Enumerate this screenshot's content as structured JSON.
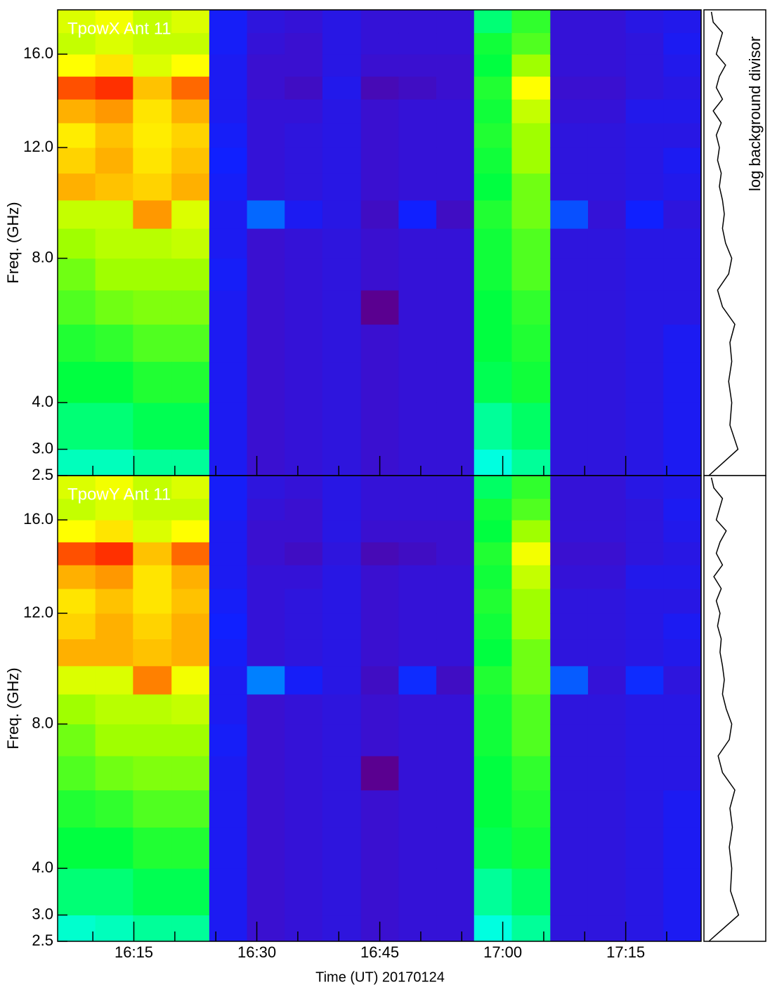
{
  "chart_data": {
    "type": "heatmap",
    "colormap": "rainbow",
    "xlabel": "Time (UT) 20170124",
    "ylabel": "Freq. (GHz)",
    "xlim": [
      965.7,
      1044.2
    ],
    "xticks": [
      {
        "value": 975,
        "label": "16:15"
      },
      {
        "value": 990,
        "label": "16:30"
      },
      {
        "value": 1005,
        "label": "16:45"
      },
      {
        "value": 1020,
        "label": "17:00"
      },
      {
        "value": 1035,
        "label": "17:15"
      }
    ],
    "xminorticks": [
      970,
      980,
      985,
      995,
      1000,
      1010,
      1015,
      1025,
      1030,
      1040
    ],
    "ylim": [
      2.5,
      18.1
    ],
    "yscale": "sqrt",
    "yticks": [
      {
        "value": 2.5,
        "label": "2.5"
      },
      {
        "value": 3,
        "label": "3.0"
      },
      {
        "value": 4,
        "label": "4.0"
      },
      {
        "value": 8,
        "label": "8.0"
      },
      {
        "value": 12,
        "label": "12.0"
      },
      {
        "value": 16,
        "label": "16.0"
      }
    ],
    "x_bins": [
      965.7,
      970.3,
      974.9,
      979.6,
      984.2,
      988.8,
      993.4,
      998.0,
      1002.7,
      1007.3,
      1011.9,
      1016.5,
      1021.1,
      1025.8,
      1030.4,
      1035.0,
      1039.6,
      1044.2
    ],
    "y_bins": [
      2.5,
      3,
      4,
      5,
      6,
      7,
      8,
      9,
      10,
      11,
      12,
      13,
      14,
      15,
      16,
      17,
      18.1
    ],
    "panels": [
      {
        "title": "TpowX Ant 11",
        "z": [
          [
            0.38,
            0.42,
            0.45,
            0.47,
            0.5,
            0.52,
            0.55,
            0.58,
            0.72,
            0.68,
            0.65,
            0.72,
            0.8,
            0.63,
            0.58,
            0.6
          ],
          [
            0.38,
            0.42,
            0.45,
            0.48,
            0.52,
            0.55,
            0.57,
            0.58,
            0.7,
            0.72,
            0.7,
            0.74,
            0.84,
            0.66,
            0.6,
            0.62
          ],
          [
            0.4,
            0.44,
            0.47,
            0.5,
            0.53,
            0.55,
            0.57,
            0.74,
            0.68,
            0.66,
            0.65,
            0.66,
            0.7,
            0.6,
            0.58,
            0.58
          ],
          [
            0.4,
            0.44,
            0.47,
            0.5,
            0.53,
            0.55,
            0.58,
            0.6,
            0.72,
            0.7,
            0.68,
            0.72,
            0.78,
            0.63,
            0.58,
            0.6
          ],
          [
            0.2,
            0.2,
            0.2,
            0.2,
            0.2,
            0.21,
            0.2,
            0.2,
            0.21,
            0.22,
            0.21,
            0.2,
            0.2,
            0.2,
            0.21,
            0.21
          ],
          [
            0.15,
            0.15,
            0.15,
            0.15,
            0.15,
            0.15,
            0.15,
            0.28,
            0.16,
            0.16,
            0.16,
            0.16,
            0.15,
            0.15,
            0.16,
            0.17
          ],
          [
            0.16,
            0.16,
            0.16,
            0.16,
            0.16,
            0.16,
            0.16,
            0.2,
            0.17,
            0.17,
            0.17,
            0.16,
            0.14,
            0.15,
            0.15,
            0.16
          ],
          [
            0.17,
            0.17,
            0.17,
            0.17,
            0.17,
            0.17,
            0.17,
            0.18,
            0.18,
            0.18,
            0.18,
            0.18,
            0.19,
            0.18,
            0.18,
            0.18
          ],
          [
            0.15,
            0.15,
            0.15,
            0.15,
            0.1,
            0.15,
            0.15,
            0.14,
            0.15,
            0.15,
            0.15,
            0.15,
            0.13,
            0.15,
            0.16,
            0.16
          ],
          [
            0.16,
            0.16,
            0.16,
            0.16,
            0.16,
            0.16,
            0.16,
            0.22,
            0.16,
            0.16,
            0.16,
            0.16,
            0.14,
            0.15,
            0.16,
            0.16
          ],
          [
            0.16,
            0.16,
            0.16,
            0.16,
            0.16,
            0.16,
            0.16,
            0.14,
            0.16,
            0.16,
            0.16,
            0.16,
            0.15,
            0.15,
            0.16,
            0.16
          ],
          [
            0.36,
            0.4,
            0.44,
            0.45,
            0.45,
            0.46,
            0.46,
            0.47,
            0.45,
            0.46,
            0.47,
            0.46,
            0.47,
            0.45,
            0.46,
            0.42
          ],
          [
            0.4,
            0.43,
            0.46,
            0.47,
            0.48,
            0.5,
            0.5,
            0.52,
            0.52,
            0.55,
            0.55,
            0.58,
            0.63,
            0.55,
            0.5,
            0.48
          ],
          [
            0.17,
            0.17,
            0.17,
            0.17,
            0.17,
            0.17,
            0.17,
            0.26,
            0.17,
            0.17,
            0.17,
            0.16,
            0.15,
            0.16,
            0.16,
            0.16
          ],
          [
            0.17,
            0.17,
            0.17,
            0.17,
            0.17,
            0.17,
            0.17,
            0.16,
            0.17,
            0.17,
            0.17,
            0.16,
            0.15,
            0.16,
            0.16,
            0.16
          ],
          [
            0.18,
            0.18,
            0.18,
            0.18,
            0.18,
            0.18,
            0.18,
            0.22,
            0.18,
            0.18,
            0.18,
            0.19,
            0.17,
            0.17,
            0.17,
            0.18
          ],
          [
            0.2,
            0.2,
            0.2,
            0.2,
            0.18,
            0.18,
            0.18,
            0.17,
            0.19,
            0.2,
            0.18,
            0.19,
            0.18,
            0.19,
            0.2,
            0.19
          ]
        ]
      },
      {
        "title": "TpowY Ant 11",
        "z": [
          [
            0.37,
            0.42,
            0.45,
            0.47,
            0.5,
            0.52,
            0.55,
            0.6,
            0.72,
            0.68,
            0.66,
            0.72,
            0.8,
            0.63,
            0.58,
            0.6
          ],
          [
            0.38,
            0.42,
            0.45,
            0.48,
            0.52,
            0.55,
            0.57,
            0.6,
            0.72,
            0.72,
            0.7,
            0.74,
            0.84,
            0.66,
            0.6,
            0.62
          ],
          [
            0.4,
            0.44,
            0.47,
            0.5,
            0.53,
            0.55,
            0.57,
            0.76,
            0.7,
            0.68,
            0.66,
            0.66,
            0.7,
            0.6,
            0.58,
            0.58
          ],
          [
            0.4,
            0.44,
            0.47,
            0.5,
            0.53,
            0.55,
            0.58,
            0.62,
            0.72,
            0.72,
            0.7,
            0.72,
            0.78,
            0.63,
            0.58,
            0.6
          ],
          [
            0.2,
            0.2,
            0.2,
            0.2,
            0.2,
            0.21,
            0.2,
            0.2,
            0.21,
            0.22,
            0.21,
            0.2,
            0.2,
            0.2,
            0.21,
            0.21
          ],
          [
            0.15,
            0.15,
            0.15,
            0.15,
            0.15,
            0.15,
            0.15,
            0.3,
            0.16,
            0.16,
            0.16,
            0.16,
            0.15,
            0.15,
            0.16,
            0.17
          ],
          [
            0.16,
            0.16,
            0.16,
            0.16,
            0.16,
            0.16,
            0.16,
            0.21,
            0.17,
            0.17,
            0.17,
            0.16,
            0.14,
            0.15,
            0.15,
            0.16
          ],
          [
            0.17,
            0.17,
            0.17,
            0.17,
            0.17,
            0.17,
            0.17,
            0.18,
            0.18,
            0.18,
            0.18,
            0.18,
            0.17,
            0.18,
            0.18,
            0.18
          ],
          [
            0.15,
            0.15,
            0.15,
            0.15,
            0.1,
            0.15,
            0.15,
            0.14,
            0.15,
            0.15,
            0.15,
            0.15,
            0.13,
            0.15,
            0.16,
            0.16
          ],
          [
            0.16,
            0.16,
            0.16,
            0.16,
            0.16,
            0.16,
            0.16,
            0.23,
            0.16,
            0.16,
            0.16,
            0.16,
            0.14,
            0.15,
            0.16,
            0.16
          ],
          [
            0.16,
            0.16,
            0.16,
            0.16,
            0.16,
            0.16,
            0.16,
            0.14,
            0.16,
            0.16,
            0.16,
            0.16,
            0.15,
            0.15,
            0.16,
            0.16
          ],
          [
            0.36,
            0.4,
            0.44,
            0.45,
            0.45,
            0.46,
            0.46,
            0.47,
            0.45,
            0.46,
            0.47,
            0.46,
            0.47,
            0.45,
            0.46,
            0.43
          ],
          [
            0.4,
            0.43,
            0.46,
            0.47,
            0.48,
            0.5,
            0.5,
            0.52,
            0.52,
            0.55,
            0.55,
            0.58,
            0.62,
            0.55,
            0.5,
            0.48
          ],
          [
            0.17,
            0.17,
            0.17,
            0.17,
            0.17,
            0.17,
            0.17,
            0.27,
            0.17,
            0.17,
            0.17,
            0.16,
            0.15,
            0.16,
            0.16,
            0.16
          ],
          [
            0.17,
            0.17,
            0.17,
            0.17,
            0.17,
            0.17,
            0.17,
            0.16,
            0.17,
            0.17,
            0.17,
            0.16,
            0.15,
            0.16,
            0.16,
            0.16
          ],
          [
            0.18,
            0.18,
            0.18,
            0.18,
            0.18,
            0.18,
            0.18,
            0.23,
            0.18,
            0.18,
            0.18,
            0.19,
            0.17,
            0.17,
            0.17,
            0.18
          ],
          [
            0.2,
            0.2,
            0.2,
            0.2,
            0.18,
            0.18,
            0.18,
            0.17,
            0.19,
            0.2,
            0.18,
            0.19,
            0.18,
            0.19,
            0.2,
            0.19
          ]
        ]
      }
    ],
    "background": {
      "label": "log background divisor",
      "freqs": [
        2.5,
        3,
        3.5,
        4,
        4.5,
        5,
        5.5,
        6,
        6.5,
        7,
        7.5,
        8,
        8.5,
        9,
        9.5,
        10,
        10.5,
        11,
        11.5,
        12,
        12.5,
        13,
        13.5,
        14,
        14.5,
        15,
        15.5,
        16,
        16.5,
        17,
        17.5,
        18
      ],
      "series": [
        {
          "values": [
            0.08,
            0.55,
            0.42,
            0.45,
            0.4,
            0.45,
            0.42,
            0.5,
            0.3,
            0.22,
            0.4,
            0.45,
            0.35,
            0.3,
            0.33,
            0.3,
            0.25,
            0.28,
            0.22,
            0.25,
            0.2,
            0.28,
            0.15,
            0.3,
            0.2,
            0.25,
            0.35,
            0.2,
            0.25,
            0.3,
            0.15,
            0.12
          ]
        },
        {
          "values": [
            0.08,
            0.56,
            0.43,
            0.45,
            0.41,
            0.46,
            0.42,
            0.5,
            0.3,
            0.23,
            0.41,
            0.45,
            0.36,
            0.3,
            0.33,
            0.3,
            0.26,
            0.28,
            0.22,
            0.26,
            0.2,
            0.28,
            0.16,
            0.3,
            0.2,
            0.26,
            0.36,
            0.2,
            0.25,
            0.3,
            0.16,
            0.12
          ]
        }
      ]
    }
  }
}
